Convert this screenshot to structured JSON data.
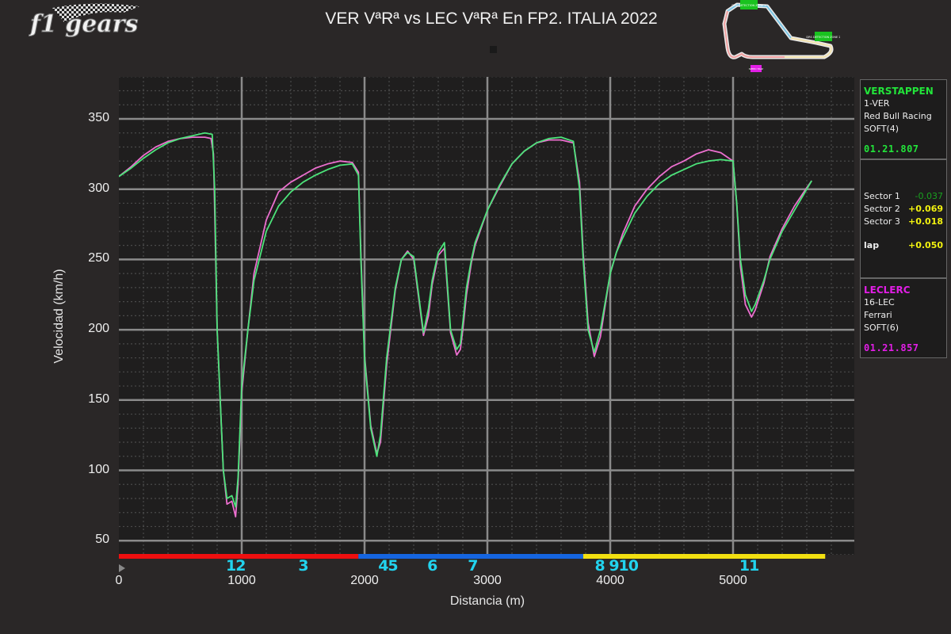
{
  "logo": {
    "text": "f1 gears"
  },
  "title": "VER VªRª vs LEC VªRª En FP2. ITALIA 2022",
  "track_map": {
    "labels": [
      "DRS DETECTION ZONE 1",
      "DRS DETECTION ZONE 2",
      "SPEED TRAP"
    ],
    "colors": {
      "drs": "#19c21f",
      "speed_trap": "#e21ee6"
    }
  },
  "drivers": [
    {
      "name": "VERSTAPPEN",
      "code": "1-VER",
      "team": "Red Bull Racing",
      "tyre": "SOFT(4)",
      "lap_time": "01.21.807",
      "color": "#22e43a"
    },
    {
      "name": "LECLERC",
      "code": "16-LEC",
      "team": "Ferrari",
      "tyre": "SOFT(6)",
      "lap_time": "01.21.857",
      "color": "#e21ee6"
    }
  ],
  "deltas": {
    "sectors": [
      {
        "label": "Sector 1",
        "value": "-0.037",
        "color": "#19a11f"
      },
      {
        "label": "Sector 2",
        "value": "+0.069",
        "color": "#f2f20f"
      },
      {
        "label": "Sector 3",
        "value": "+0.018",
        "color": "#f2f20f"
      }
    ],
    "lap": {
      "label": "lap",
      "value": "+0.050",
      "color": "#f2f20f"
    }
  },
  "corners": [
    {
      "label": "12",
      "x": 950
    },
    {
      "label": "3",
      "x": 1500
    },
    {
      "label": "45",
      "x": 2190
    },
    {
      "label": "6",
      "x": 2550
    },
    {
      "label": "7",
      "x": 2880
    },
    {
      "label": "8 910",
      "x": 4050
    },
    {
      "label": "11",
      "x": 5130
    }
  ],
  "sector_bar": [
    {
      "sector": 1,
      "from": 0,
      "to": 1950,
      "color": "#ee0f0f"
    },
    {
      "sector": 2,
      "from": 1950,
      "to": 3780,
      "color": "#1565e0"
    },
    {
      "sector": 3,
      "from": 3780,
      "to": 5750,
      "color": "#f2e011"
    }
  ],
  "chart_data": {
    "type": "line",
    "title": "VER VªRª vs LEC VªRª En FP2. ITALIA 2022",
    "xlabel": "Distancia (m)",
    "ylabel": "Velocidad (km/h)",
    "xlim": [
      0,
      5990
    ],
    "ylim": [
      40,
      380
    ],
    "xticks": [
      0,
      1000,
      2000,
      3000,
      4000,
      5000
    ],
    "yticks": [
      50,
      100,
      150,
      200,
      250,
      300,
      350
    ],
    "grid": true,
    "legend_position": "right-panel",
    "series": [
      {
        "name": "VER",
        "color": "#4ce37a",
        "x": [
          0,
          100,
          200,
          300,
          400,
          500,
          600,
          700,
          760,
          780,
          800,
          850,
          880,
          920,
          950,
          970,
          1000,
          1050,
          1100,
          1200,
          1300,
          1400,
          1500,
          1600,
          1700,
          1800,
          1900,
          1950,
          1970,
          2000,
          2050,
          2100,
          2130,
          2180,
          2250,
          2300,
          2350,
          2400,
          2440,
          2480,
          2520,
          2550,
          2600,
          2650,
          2700,
          2750,
          2780,
          2800,
          2830,
          2870,
          2900,
          3000,
          3100,
          3200,
          3300,
          3400,
          3500,
          3600,
          3700,
          3750,
          3780,
          3820,
          3870,
          3920,
          3960,
          4000,
          4050,
          4100,
          4200,
          4300,
          4400,
          4500,
          4600,
          4700,
          4800,
          4900,
          5000,
          5030,
          5060,
          5100,
          5150,
          5180,
          5250,
          5300,
          5400,
          5500,
          5600,
          5640
        ],
        "y": [
          309,
          315,
          322,
          328,
          333,
          336,
          338,
          340,
          339,
          300,
          200,
          100,
          80,
          82,
          74,
          95,
          160,
          200,
          235,
          270,
          288,
          298,
          305,
          310,
          314,
          317,
          318,
          310,
          250,
          180,
          130,
          110,
          125,
          180,
          230,
          250,
          255,
          252,
          225,
          198,
          215,
          235,
          255,
          262,
          200,
          186,
          190,
          205,
          230,
          250,
          262,
          285,
          303,
          318,
          327,
          333,
          336,
          337,
          334,
          300,
          250,
          200,
          184,
          200,
          220,
          240,
          255,
          265,
          283,
          295,
          304,
          310,
          314,
          318,
          320,
          321,
          320,
          290,
          250,
          225,
          213,
          218,
          235,
          250,
          270,
          285,
          300,
          306
        ]
      },
      {
        "name": "LEC",
        "color": "#ec6fcf",
        "x": [
          0,
          100,
          200,
          300,
          400,
          500,
          600,
          700,
          750,
          770,
          800,
          850,
          880,
          920,
          950,
          970,
          1000,
          1050,
          1100,
          1200,
          1300,
          1400,
          1500,
          1600,
          1700,
          1800,
          1900,
          1950,
          1970,
          2000,
          2050,
          2100,
          2130,
          2180,
          2250,
          2300,
          2350,
          2400,
          2440,
          2480,
          2520,
          2550,
          2600,
          2650,
          2700,
          2750,
          2780,
          2800,
          2830,
          2870,
          2900,
          3000,
          3100,
          3200,
          3300,
          3400,
          3500,
          3600,
          3700,
          3750,
          3780,
          3820,
          3870,
          3920,
          3960,
          4000,
          4050,
          4100,
          4200,
          4300,
          4400,
          4500,
          4600,
          4700,
          4800,
          4900,
          5000,
          5030,
          5060,
          5100,
          5150,
          5180,
          5250,
          5300,
          5400,
          5500,
          5600,
          5640
        ],
        "y": [
          309,
          316,
          324,
          330,
          334,
          336,
          337,
          337,
          336,
          325,
          200,
          100,
          76,
          78,
          67,
          90,
          155,
          200,
          240,
          278,
          298,
          305,
          310,
          315,
          318,
          320,
          319,
          312,
          255,
          182,
          132,
          112,
          120,
          175,
          228,
          250,
          256,
          250,
          223,
          196,
          210,
          232,
          253,
          258,
          198,
          182,
          186,
          200,
          225,
          248,
          260,
          285,
          302,
          318,
          327,
          333,
          335,
          335,
          333,
          305,
          255,
          205,
          181,
          195,
          218,
          240,
          255,
          268,
          288,
          300,
          309,
          316,
          320,
          325,
          328,
          326,
          320,
          290,
          245,
          218,
          209,
          214,
          233,
          252,
          272,
          288,
          301,
          306
        ]
      }
    ]
  }
}
